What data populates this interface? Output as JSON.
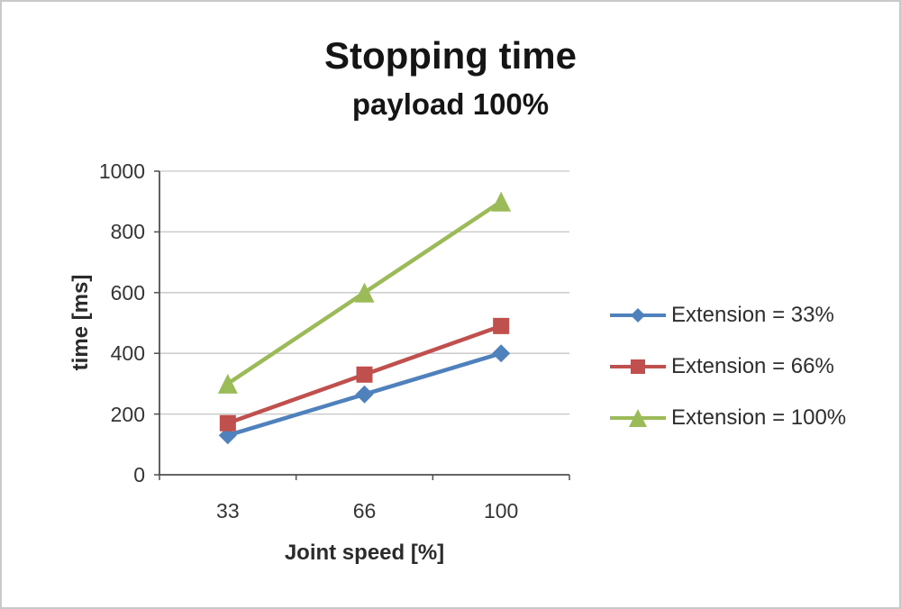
{
  "chart_data": {
    "type": "line",
    "title": "Stopping time",
    "subtitle": "payload 100%",
    "xlabel": "Joint speed [%]",
    "ylabel": "time [ms]",
    "categories": [
      "33",
      "66",
      "100"
    ],
    "yticks": [
      "0",
      "200",
      "400",
      "600",
      "800",
      "1000"
    ],
    "ylim": [
      0,
      1000
    ],
    "ytick_step": 200,
    "grid": true,
    "legend_position": "right",
    "series": [
      {
        "name": "Extension = 33%",
        "values": [
          130,
          265,
          400
        ],
        "color": "#4F81BD",
        "marker": "diamond"
      },
      {
        "name": "Extension = 66%",
        "values": [
          170,
          330,
          490
        ],
        "color": "#C0504D",
        "marker": "square"
      },
      {
        "name": "Extension = 100%",
        "values": [
          300,
          600,
          900
        ],
        "color": "#9BBB59",
        "marker": "triangle"
      }
    ]
  },
  "colors": {
    "grid": "#c6c6c6",
    "axis": "#4f4f4f",
    "tick": "#4f4f4f",
    "title": "#151515",
    "text": "#2e2e2e",
    "frame": "#c9c9c9"
  }
}
